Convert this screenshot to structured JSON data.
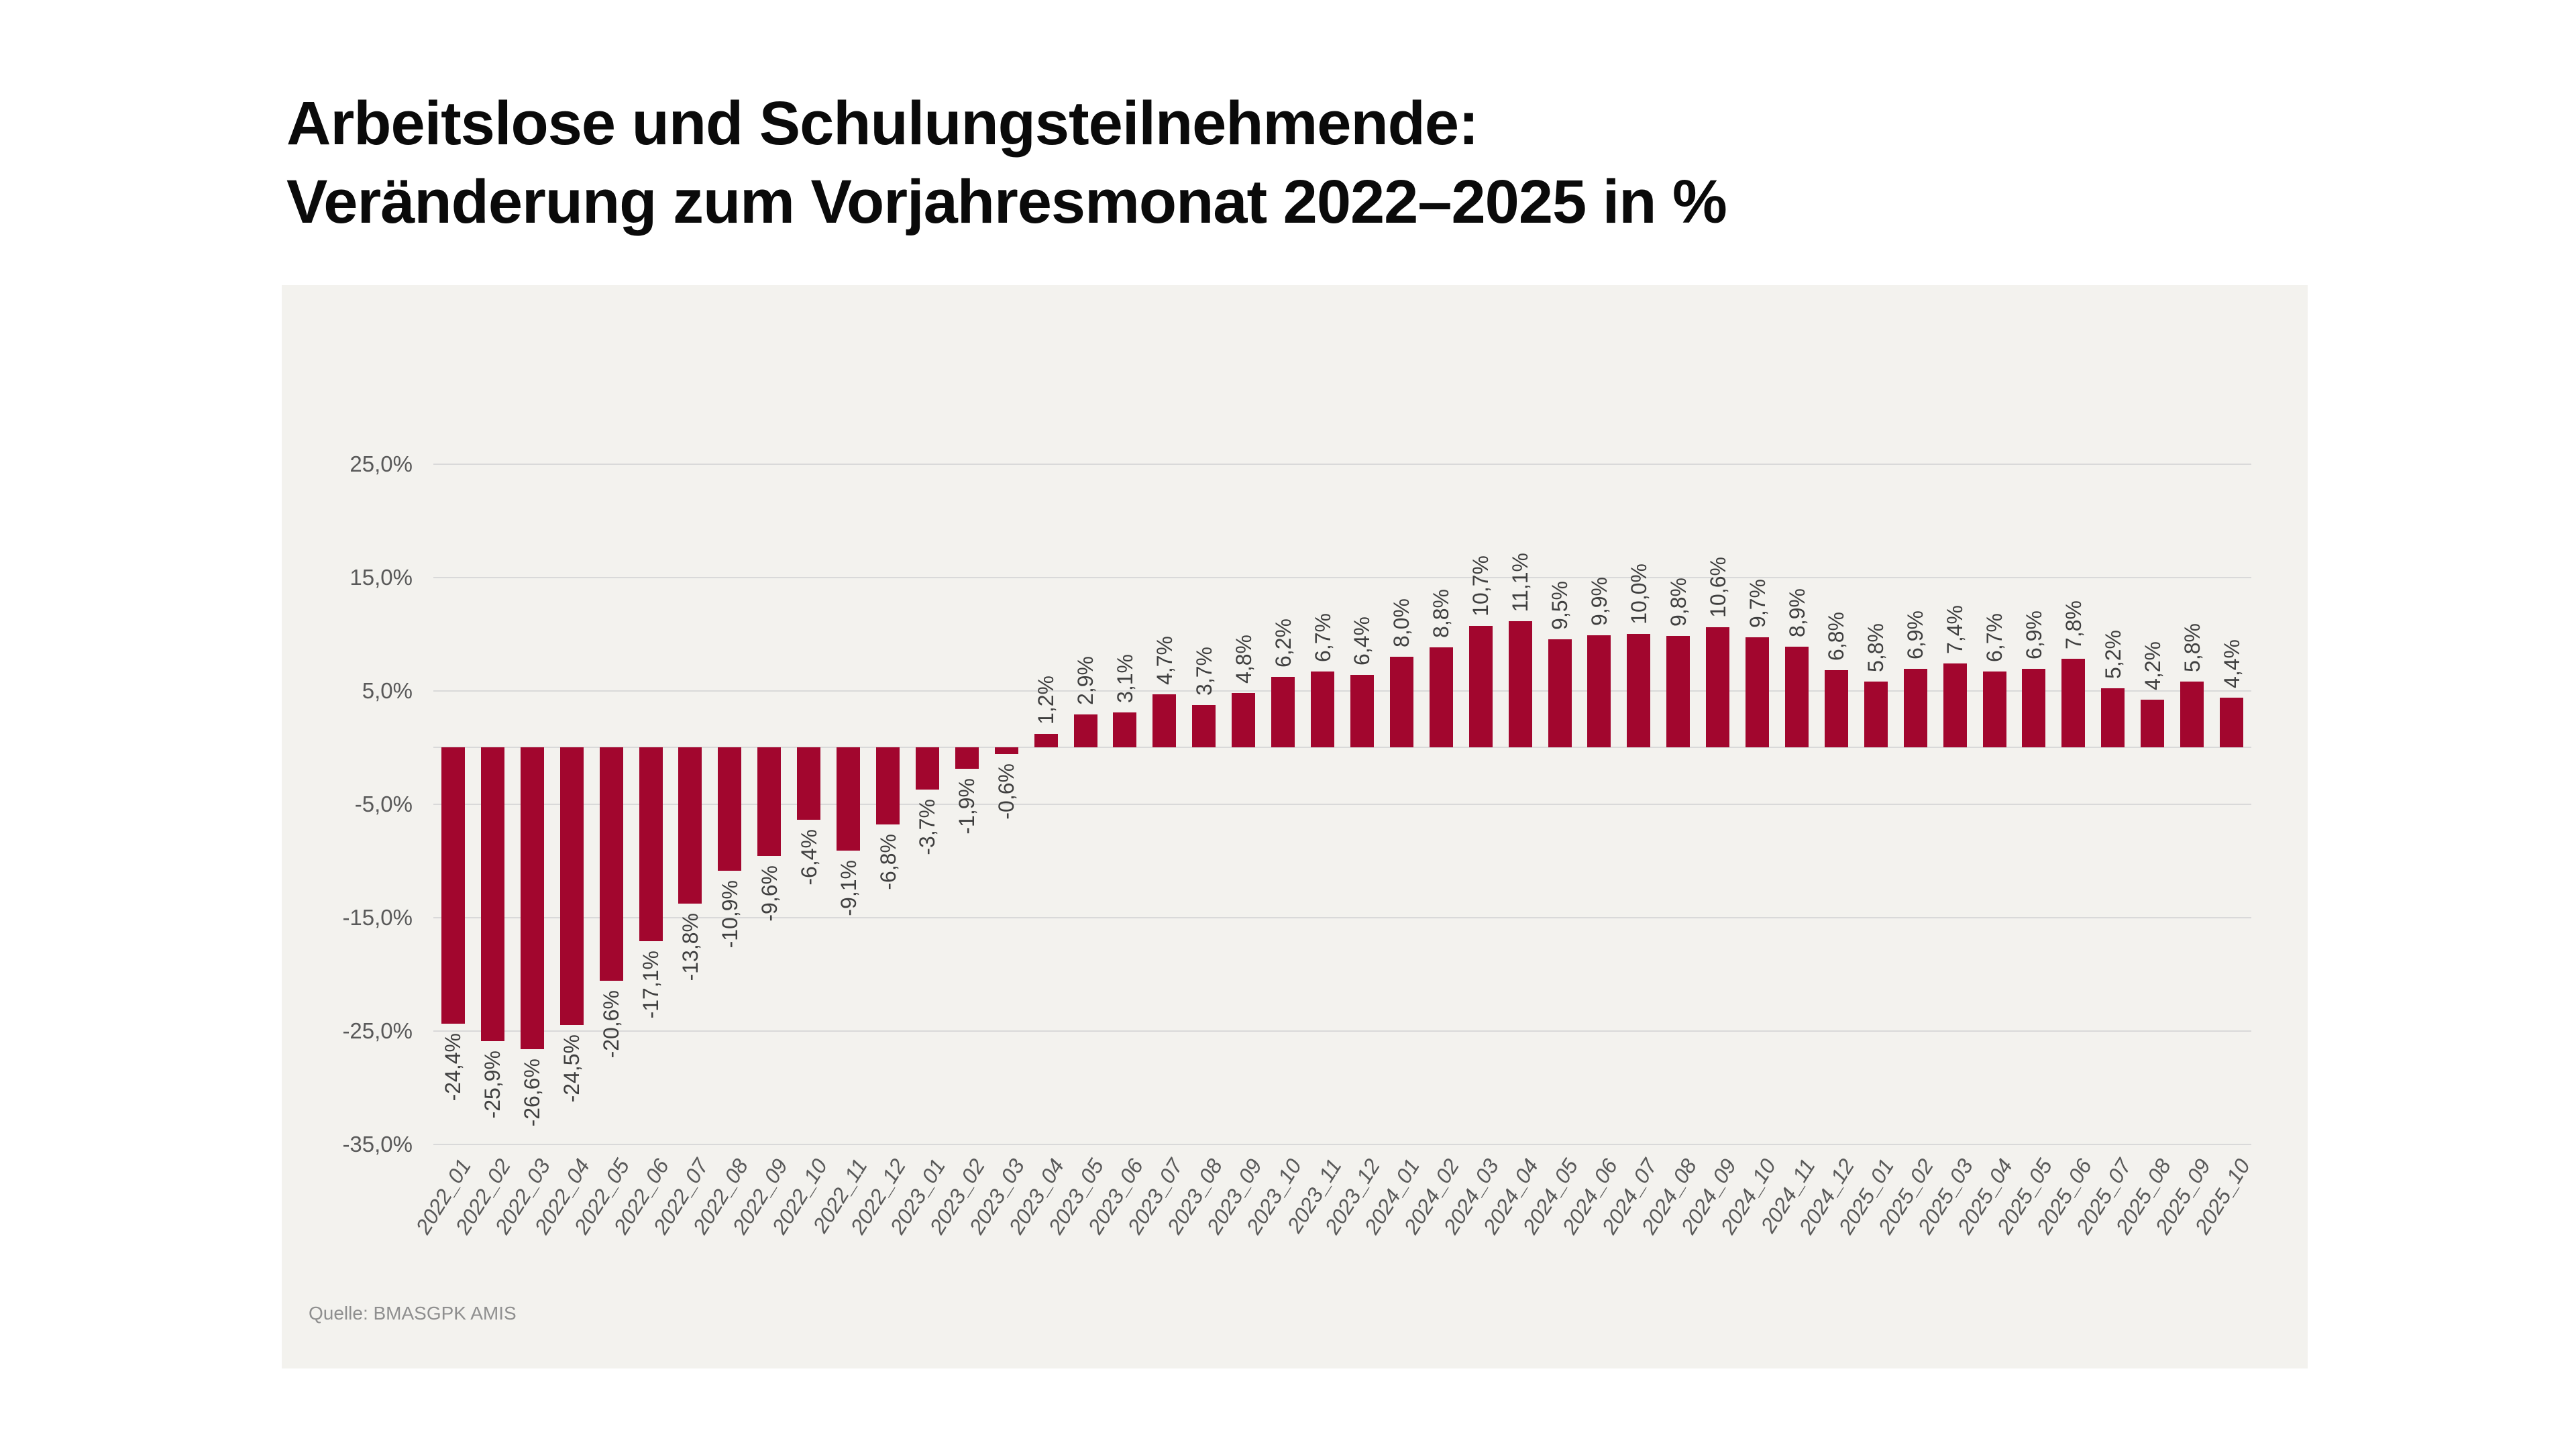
{
  "title": {
    "line1": "Arbeitslose und Schulungsteilnehmende:",
    "line2": "Veränderung zum Vorjahresmonat 2022–2025 in %"
  },
  "source": "Quelle: BMASGPK AMIS",
  "colors": {
    "page_bg": "#ffffff",
    "panel_bg": "#f3f2ee",
    "bar": "#a2062e",
    "grid": "#d9d9d9",
    "tick_text": "#595959",
    "value_text": "#3f3f3f",
    "title_text": "#0a0a0a",
    "source_text": "#8f8f8f"
  },
  "chart_data": {
    "type": "bar",
    "title": "Arbeitslose und Schulungsteilnehmende: Veränderung zum Vorjahresmonat 2022–2025 in %",
    "xlabel": "",
    "ylabel": "",
    "categories": [
      "2022_01",
      "2022_02",
      "2022_03",
      "2022_04",
      "2022_05",
      "2022_06",
      "2022_07",
      "2022_08",
      "2022_09",
      "2022_10",
      "2022_11",
      "2022_12",
      "2023_01",
      "2023_02",
      "2023_03",
      "2023_04",
      "2023_05",
      "2023_06",
      "2023_07",
      "2023_08",
      "2023_09",
      "2023_10",
      "2023_11",
      "2023_12",
      "2024_01",
      "2024_02",
      "2024_03",
      "2024_04",
      "2024_05",
      "2024_06",
      "2024_07",
      "2024_08",
      "2024_09",
      "2024_10",
      "2024_11",
      "2024_12",
      "2025_01",
      "2025_02",
      "2025_03",
      "2025_04",
      "2025_05",
      "2025_06",
      "2025_07",
      "2025_08",
      "2025_09",
      "2025_10"
    ],
    "values": [
      -24.4,
      -25.9,
      -26.6,
      -24.5,
      -20.6,
      -17.1,
      -13.8,
      -10.9,
      -9.6,
      -6.4,
      -9.1,
      -6.8,
      -3.7,
      -1.9,
      -0.6,
      1.2,
      2.9,
      3.1,
      4.7,
      3.7,
      4.8,
      6.2,
      6.7,
      6.4,
      8.0,
      8.8,
      10.7,
      11.1,
      9.5,
      9.9,
      10.0,
      9.8,
      10.6,
      9.7,
      8.9,
      6.8,
      5.8,
      6.9,
      7.4,
      6.7,
      6.9,
      7.8,
      5.2,
      4.2,
      5.8,
      4.4
    ],
    "ylim": [
      -35,
      25
    ],
    "yticks": [
      25,
      15,
      5,
      -5,
      -15,
      -25,
      -35
    ],
    "ytick_labels": [
      "25,0%",
      "15,0%",
      "5,0%",
      "-5,0%",
      "-15,0%",
      "-25,0%",
      "-35,0%"
    ],
    "zero_line": true,
    "grid": "horizontal",
    "legend": "none",
    "bar_labels_rotated": true,
    "x_labels_rotated": true,
    "value_label_decimal_separator": ","
  }
}
